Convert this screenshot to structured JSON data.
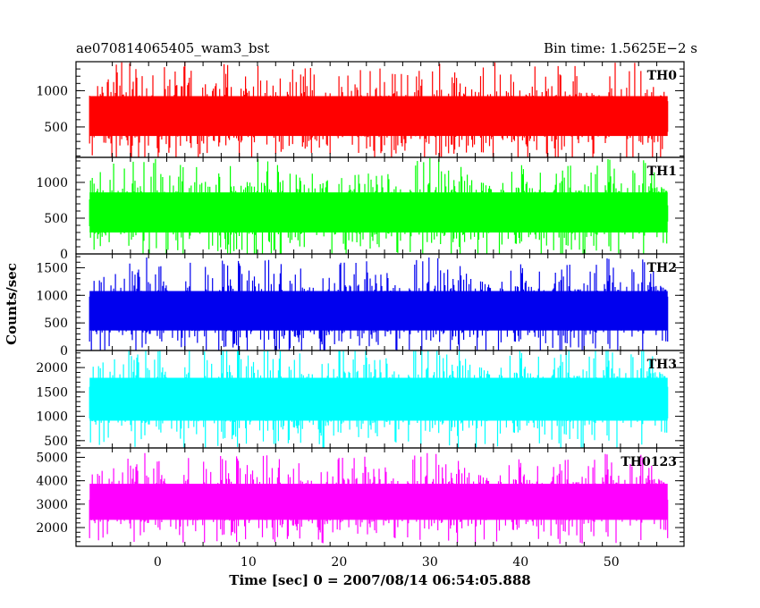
{
  "chart_data": {
    "type": "line",
    "title_left": "ae070814065405_wam3_bst",
    "title_right": "Bin time: 1.5625E−2 s",
    "xlabel": "Time [sec] 0 = 2007/08/14 06:54:05.888",
    "ylabel": "Counts/sec",
    "xlim": [
      -9,
      58
    ],
    "x_ticks": [
      0,
      10,
      20,
      30,
      40,
      50
    ],
    "x_tick_labels": [
      "0",
      "10",
      "20",
      "30",
      "40",
      "50"
    ],
    "data_x_range": [
      -7.5,
      56.2
    ],
    "grid": false,
    "legend": "none",
    "series": [
      {
        "name": "TH0",
        "color": "#ff0000",
        "ylim": [
          80,
          1400
        ],
        "y_ticks": [
          500,
          1000
        ],
        "y_tick_labels": [
          "500",
          "1000"
        ],
        "typical_range": [
          150,
          1150
        ],
        "mean": 650
      },
      {
        "name": "TH1",
        "color": "#00ff00",
        "ylim": [
          0,
          1350
        ],
        "y_ticks": [
          0,
          500,
          1000
        ],
        "y_tick_labels": [
          "0",
          "500",
          "1000"
        ],
        "typical_range": [
          80,
          1100
        ],
        "mean": 580
      },
      {
        "name": "TH2",
        "color": "#0000ee",
        "ylim": [
          0,
          1750
        ],
        "y_ticks": [
          0,
          500,
          1000,
          1500
        ],
        "y_tick_labels": [
          "0",
          "500",
          "1000",
          "1500"
        ],
        "typical_range": [
          150,
          1450
        ],
        "mean": 720
      },
      {
        "name": "TH3",
        "color": "#00ffff",
        "ylim": [
          350,
          2350
        ],
        "y_ticks": [
          500,
          1000,
          1500,
          2000
        ],
        "y_tick_labels": [
          "500",
          "1000",
          "1500",
          "2000"
        ],
        "typical_range": [
          550,
          2150
        ],
        "mean": 1350
      },
      {
        "name": "TH0123",
        "color": "#ff00ff",
        "ylim": [
          1200,
          5400
        ],
        "y_ticks": [
          2000,
          3000,
          4000,
          5000
        ],
        "y_tick_labels": [
          "2000",
          "3000",
          "4000",
          "5000"
        ],
        "typical_range": [
          1700,
          4500
        ],
        "mean": 3100
      }
    ]
  }
}
